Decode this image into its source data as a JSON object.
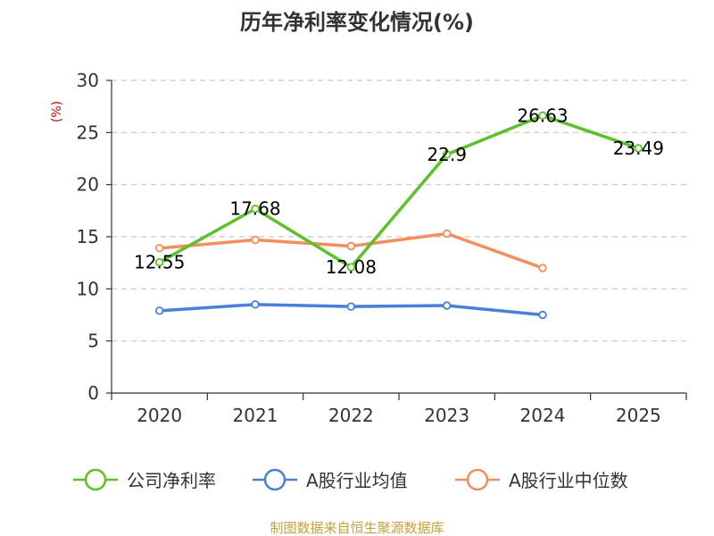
{
  "chart_data": {
    "type": "line",
    "title": "历年净利率变化情况(%)",
    "ylabel": "(%)",
    "xlabel": "",
    "categories": [
      "2020",
      "2021",
      "2022",
      "2023",
      "2024",
      "2025"
    ],
    "ylim": [
      0,
      30
    ],
    "yticks": [
      "0",
      "5",
      "10",
      "15",
      "20",
      "25",
      "30"
    ],
    "grid": true,
    "legend_position": "bottom",
    "series": [
      {
        "name": "公司净利率",
        "color": "#5cc12b",
        "values": [
          12.55,
          17.68,
          12.08,
          22.9,
          26.63,
          23.49
        ],
        "labels": [
          "12.55",
          "17.68",
          "12.08",
          "22.9",
          "26.63",
          "23.49"
        ]
      },
      {
        "name": "A股行业均值",
        "color": "#4a7fd8",
        "values": [
          7.9,
          8.5,
          8.3,
          8.4,
          7.5,
          null
        ]
      },
      {
        "name": "A股行业中位数",
        "color": "#f28f5c",
        "values": [
          13.9,
          14.7,
          14.1,
          15.3,
          12.0,
          null
        ]
      }
    ]
  },
  "source": "制图数据来自恒生聚源数据库",
  "colors": {
    "axis": "#333333",
    "grid": "#c8c8c8",
    "unit_label": "#d40000",
    "source_text": "#c8a03c"
  }
}
